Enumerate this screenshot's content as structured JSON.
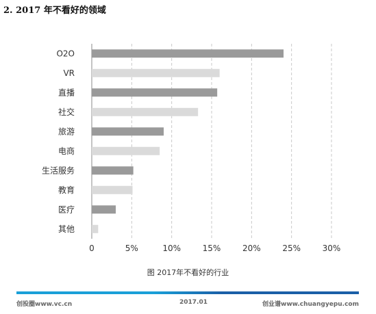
{
  "heading": {
    "number": "2. 2017",
    "text": "年不看好的领域"
  },
  "caption": "图 2017年不看好的行业",
  "footer": {
    "left": "创投圈www.vc.cn",
    "center": "2017.01",
    "right": "创业谱www.chuangyepu.com"
  },
  "colors": {
    "dark_bar": "#9a9a9a",
    "light_bar": "#dadada",
    "grid": "#c8c8c8",
    "accent": "#1aa0d8"
  },
  "chart_data": {
    "type": "bar",
    "orientation": "horizontal",
    "categories": [
      "O2O",
      "VR",
      "直播",
      "社交",
      "旅游",
      "电商",
      "生活服务",
      "教育",
      "医疗",
      "其他"
    ],
    "values": [
      24.0,
      16.0,
      15.7,
      13.3,
      9.0,
      8.5,
      5.2,
      5.1,
      3.0,
      0.8
    ],
    "xlim": [
      0,
      30
    ],
    "xticks": [
      "0",
      "5%",
      "10%",
      "15%",
      "20%",
      "25%",
      "30%"
    ],
    "xtick_values": [
      0,
      5,
      10,
      15,
      20,
      25,
      30
    ],
    "bar_colors": [
      "dark",
      "light",
      "dark",
      "light",
      "dark",
      "light",
      "dark",
      "light",
      "dark",
      "light"
    ],
    "grid": "vertical dashed"
  }
}
